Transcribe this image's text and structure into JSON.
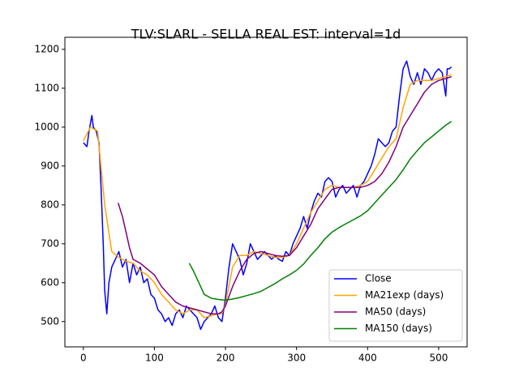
{
  "chart_data": {
    "type": "line",
    "title": "TLV:SLARL - SELLA REAL EST: interval=1d",
    "xlim": [
      -26,
      540
    ],
    "ylim": [
      435,
      1231
    ],
    "xticks": [
      0,
      100,
      200,
      300,
      400,
      500
    ],
    "yticks": [
      500,
      600,
      700,
      800,
      900,
      1000,
      1100,
      1200
    ],
    "legend": "lower right",
    "series": [
      {
        "name": "Close",
        "color": "#0000ff",
        "x": [
          0,
          5,
          8,
          12,
          14,
          18,
          22,
          25,
          28,
          30,
          33,
          36,
          40,
          45,
          50,
          55,
          60,
          65,
          70,
          75,
          80,
          85,
          90,
          95,
          100,
          105,
          110,
          115,
          120,
          125,
          130,
          135,
          140,
          145,
          150,
          155,
          160,
          165,
          170,
          175,
          180,
          185,
          190,
          195,
          200,
          205,
          210,
          215,
          220,
          225,
          230,
          235,
          240,
          245,
          250,
          255,
          260,
          265,
          270,
          275,
          280,
          285,
          290,
          295,
          300,
          305,
          310,
          315,
          320,
          325,
          330,
          335,
          340,
          345,
          350,
          355,
          360,
          365,
          370,
          375,
          380,
          385,
          390,
          395,
          400,
          405,
          410,
          415,
          420,
          425,
          430,
          435,
          440,
          445,
          450,
          455,
          460,
          465,
          470,
          475,
          480,
          485,
          490,
          495,
          500,
          505,
          510,
          512,
          515,
          518
        ],
        "values": [
          960,
          950,
          990,
          1030,
          1000,
          990,
          960,
          840,
          700,
          580,
          520,
          600,
          640,
          660,
          680,
          640,
          660,
          600,
          650,
          620,
          640,
          600,
          610,
          570,
          560,
          530,
          520,
          500,
          510,
          490,
          520,
          530,
          510,
          540,
          530,
          520,
          510,
          480,
          500,
          510,
          520,
          540,
          510,
          500,
          560,
          640,
          700,
          680,
          660,
          620,
          650,
          700,
          680,
          660,
          670,
          680,
          670,
          660,
          670,
          660,
          655,
          680,
          670,
          700,
          720,
          740,
          770,
          740,
          780,
          810,
          830,
          820,
          860,
          870,
          860,
          820,
          840,
          850,
          830,
          840,
          850,
          820,
          850,
          860,
          880,
          900,
          930,
          970,
          960,
          950,
          960,
          990,
          1000,
          1080,
          1150,
          1170,
          1130,
          1110,
          1140,
          1110,
          1150,
          1140,
          1120,
          1140,
          1150,
          1140,
          1080,
          1150,
          1150,
          1155
        ]
      },
      {
        "name": "MA21exp (days)",
        "color": "#ffa500",
        "x": [
          0,
          10,
          20,
          30,
          40,
          50,
          60,
          70,
          80,
          90,
          100,
          110,
          120,
          130,
          140,
          150,
          160,
          170,
          180,
          190,
          195,
          200,
          210,
          220,
          230,
          240,
          250,
          260,
          270,
          280,
          290,
          300,
          310,
          320,
          330,
          340,
          350,
          360,
          370,
          380,
          390,
          400,
          410,
          420,
          430,
          440,
          450,
          460,
          470,
          480,
          490,
          500,
          510,
          518
        ],
        "values": [
          965,
          1000,
          990,
          800,
          680,
          665,
          655,
          650,
          630,
          620,
          600,
          570,
          550,
          530,
          520,
          530,
          530,
          510,
          515,
          520,
          520,
          545,
          640,
          670,
          670,
          680,
          675,
          670,
          665,
          665,
          670,
          700,
          740,
          780,
          810,
          840,
          850,
          845,
          845,
          845,
          850,
          860,
          890,
          920,
          950,
          970,
          1050,
          1110,
          1120,
          1120,
          1120,
          1125,
          1130,
          1135
        ]
      },
      {
        "name": "MA50 (days)",
        "color": "#800080",
        "x": [
          49,
          55,
          60,
          65,
          70,
          80,
          90,
          100,
          110,
          120,
          130,
          140,
          150,
          160,
          170,
          180,
          190,
          195,
          200,
          210,
          220,
          230,
          240,
          250,
          260,
          270,
          280,
          290,
          300,
          310,
          320,
          330,
          340,
          350,
          360,
          370,
          380,
          390,
          400,
          410,
          420,
          430,
          440,
          450,
          460,
          470,
          480,
          490,
          500,
          510,
          518
        ],
        "values": [
          805,
          770,
          730,
          690,
          660,
          650,
          635,
          620,
          590,
          570,
          550,
          540,
          535,
          530,
          525,
          520,
          520,
          525,
          540,
          590,
          630,
          660,
          675,
          680,
          675,
          670,
          668,
          670,
          690,
          720,
          750,
          790,
          815,
          840,
          845,
          845,
          845,
          845,
          850,
          860,
          880,
          910,
          950,
          1000,
          1030,
          1060,
          1090,
          1110,
          1120,
          1125,
          1130
        ]
      },
      {
        "name": "MA150 (days)",
        "color": "#008000",
        "x": [
          149,
          155,
          160,
          165,
          170,
          180,
          190,
          200,
          210,
          220,
          230,
          240,
          250,
          260,
          270,
          280,
          290,
          300,
          310,
          320,
          330,
          340,
          350,
          360,
          370,
          380,
          390,
          400,
          410,
          420,
          430,
          440,
          450,
          460,
          470,
          480,
          490,
          500,
          510,
          518
        ],
        "values": [
          650,
          630,
          610,
          590,
          570,
          560,
          557,
          555,
          558,
          562,
          567,
          572,
          578,
          588,
          598,
          610,
          620,
          632,
          648,
          670,
          690,
          713,
          730,
          742,
          752,
          762,
          772,
          785,
          805,
          825,
          845,
          865,
          890,
          918,
          940,
          960,
          975,
          990,
          1005,
          1015
        ]
      }
    ]
  }
}
